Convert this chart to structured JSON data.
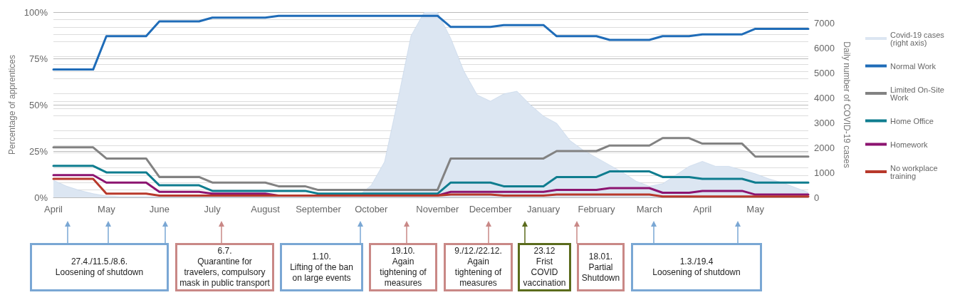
{
  "chart_data": {
    "type": "line",
    "ylabel": "Percentage of apprentices",
    "y2label": "Daily number of COVID-19 cases",
    "categories": [
      "April",
      null,
      null,
      null,
      "May",
      null,
      null,
      null,
      "June",
      null,
      null,
      null,
      "July",
      null,
      null,
      null,
      "August",
      null,
      null,
      null,
      "September",
      null,
      null,
      null,
      "October",
      null,
      null,
      null,
      null,
      "November",
      null,
      null,
      null,
      "December",
      null,
      null,
      null,
      "January",
      null,
      null,
      null,
      "February",
      null,
      null,
      null,
      "March",
      null,
      null,
      null,
      "April",
      null,
      null,
      null,
      "May",
      null,
      null,
      null,
      null
    ],
    "ylim": [
      0,
      100
    ],
    "yticks": [
      {
        "value": 0,
        "label": "0%"
      },
      {
        "value": 25,
        "label": "25%"
      },
      {
        "value": 50,
        "label": "50%"
      },
      {
        "value": 75,
        "label": "75%"
      },
      {
        "value": 100,
        "label": "100%"
      }
    ],
    "y2lim": [
      0,
      7450
    ],
    "y2ticks": [
      0,
      1000,
      2000,
      3000,
      4000,
      5000,
      6000,
      7000
    ],
    "grid": "y",
    "legend": "right",
    "marker": "none",
    "line_style": "solid",
    "series": [
      {
        "name": "Covid-19 cases (right axis)",
        "type": "area",
        "axis": "y2",
        "color": "#dce6f2",
        "values": [
          690,
          450,
          280,
          150,
          60,
          30,
          30,
          30,
          30,
          30,
          30,
          30,
          30,
          30,
          30,
          30,
          30,
          30,
          30,
          30,
          30,
          30,
          30,
          50,
          490,
          1430,
          3900,
          6500,
          7450,
          7450,
          6400,
          5070,
          4120,
          3870,
          4160,
          4270,
          3730,
          3270,
          2980,
          2290,
          1900,
          1600,
          1300,
          1000,
          650,
          450,
          550,
          900,
          1250,
          1450,
          1250,
          1250,
          1100,
          950,
          750,
          600,
          400,
          200
        ]
      },
      {
        "name": "Normal Work",
        "color": "#1f6cb8",
        "values": [
          69,
          69,
          69,
          69,
          87,
          87,
          87,
          87,
          95,
          95,
          95,
          95,
          97,
          97,
          97,
          97,
          97,
          98,
          98,
          98,
          98,
          98,
          98,
          98,
          98,
          98,
          98,
          98,
          98,
          98,
          92,
          92,
          92,
          92,
          93,
          93,
          93,
          93,
          87,
          87,
          87,
          87,
          85,
          85,
          85,
          85,
          87,
          87,
          87,
          88,
          88,
          88,
          88,
          91,
          91,
          91,
          91,
          91
        ]
      },
      {
        "name": "Limited On-Site Work",
        "color": "#828282",
        "values": [
          27,
          27,
          27,
          27,
          21,
          21,
          21,
          21,
          11,
          11,
          11,
          11,
          8,
          8,
          8,
          8,
          8,
          6,
          6,
          6,
          4,
          4,
          4,
          4,
          4,
          4,
          4,
          4,
          4,
          4,
          21,
          21,
          21,
          21,
          21,
          21,
          21,
          21,
          25,
          25,
          25,
          25,
          28,
          28,
          28,
          28,
          32,
          32,
          32,
          29,
          29,
          29,
          29,
          22,
          22,
          22,
          22,
          22
        ]
      },
      {
        "name": "Home Office",
        "color": "#0f7d8f",
        "values": [
          17,
          17,
          17,
          17,
          13.5,
          13.5,
          13.5,
          13.5,
          6.5,
          6.5,
          6.5,
          6.5,
          3.5,
          3.5,
          3.5,
          3.5,
          3.5,
          3.5,
          3.5,
          3.5,
          2,
          2,
          2,
          2,
          2,
          2,
          2,
          2,
          2,
          2,
          8,
          8,
          8,
          8,
          6,
          6,
          6,
          6,
          11,
          11,
          11,
          11,
          14,
          14,
          14,
          14,
          11,
          11,
          11,
          10,
          10,
          10,
          10,
          8,
          8,
          8,
          8,
          8
        ]
      },
      {
        "name": "Homework",
        "color": "#8c1470",
        "values": [
          12,
          12,
          12,
          12,
          8,
          8,
          8,
          8,
          3,
          3,
          3,
          3,
          2,
          2,
          2,
          2,
          2,
          1,
          1,
          1,
          1,
          1,
          1,
          1,
          1,
          1,
          1,
          1,
          1,
          1,
          3,
          3,
          3,
          3,
          3,
          3,
          3,
          3,
          4,
          4,
          4,
          4,
          5,
          5,
          5,
          5,
          2.5,
          2.5,
          2.5,
          3.5,
          3.5,
          3.5,
          3.5,
          1.5,
          1.5,
          1.5,
          1.5,
          1.5
        ]
      },
      {
        "name": "No workplace training",
        "color": "#b8392b",
        "values": [
          10,
          10,
          10,
          10,
          2,
          2,
          2,
          2,
          1,
          1,
          1,
          1,
          1,
          1,
          1,
          1,
          1,
          1,
          1,
          1,
          1,
          1,
          1,
          1,
          1,
          1,
          1,
          1,
          1,
          1,
          1.5,
          1.5,
          1.5,
          1.5,
          1,
          1,
          1,
          1,
          1.5,
          1.5,
          1.5,
          1.5,
          1.5,
          1.5,
          1.5,
          1.5,
          0.5,
          0.5,
          0.5,
          0.5,
          0.5,
          0.5,
          0.5,
          0.5,
          0.5,
          0.5,
          0.5,
          0.5
        ]
      }
    ],
    "annotations": [
      "27.4./11.5./8.6.\nLoosening of shutdown",
      "6.7.\nQuarantine for travelers, compulsory mask in public transport",
      "1.10.\nLifting of the ban on large events",
      "19.10.\nAgain tightening of measures",
      "9./12./22.12.\nAgain tightening of measures",
      "23.12\nFrist COVID vaccination",
      "18.01.\nPartial Shutdown",
      "1.3./19.4\nLoosening of shutdown"
    ]
  }
}
